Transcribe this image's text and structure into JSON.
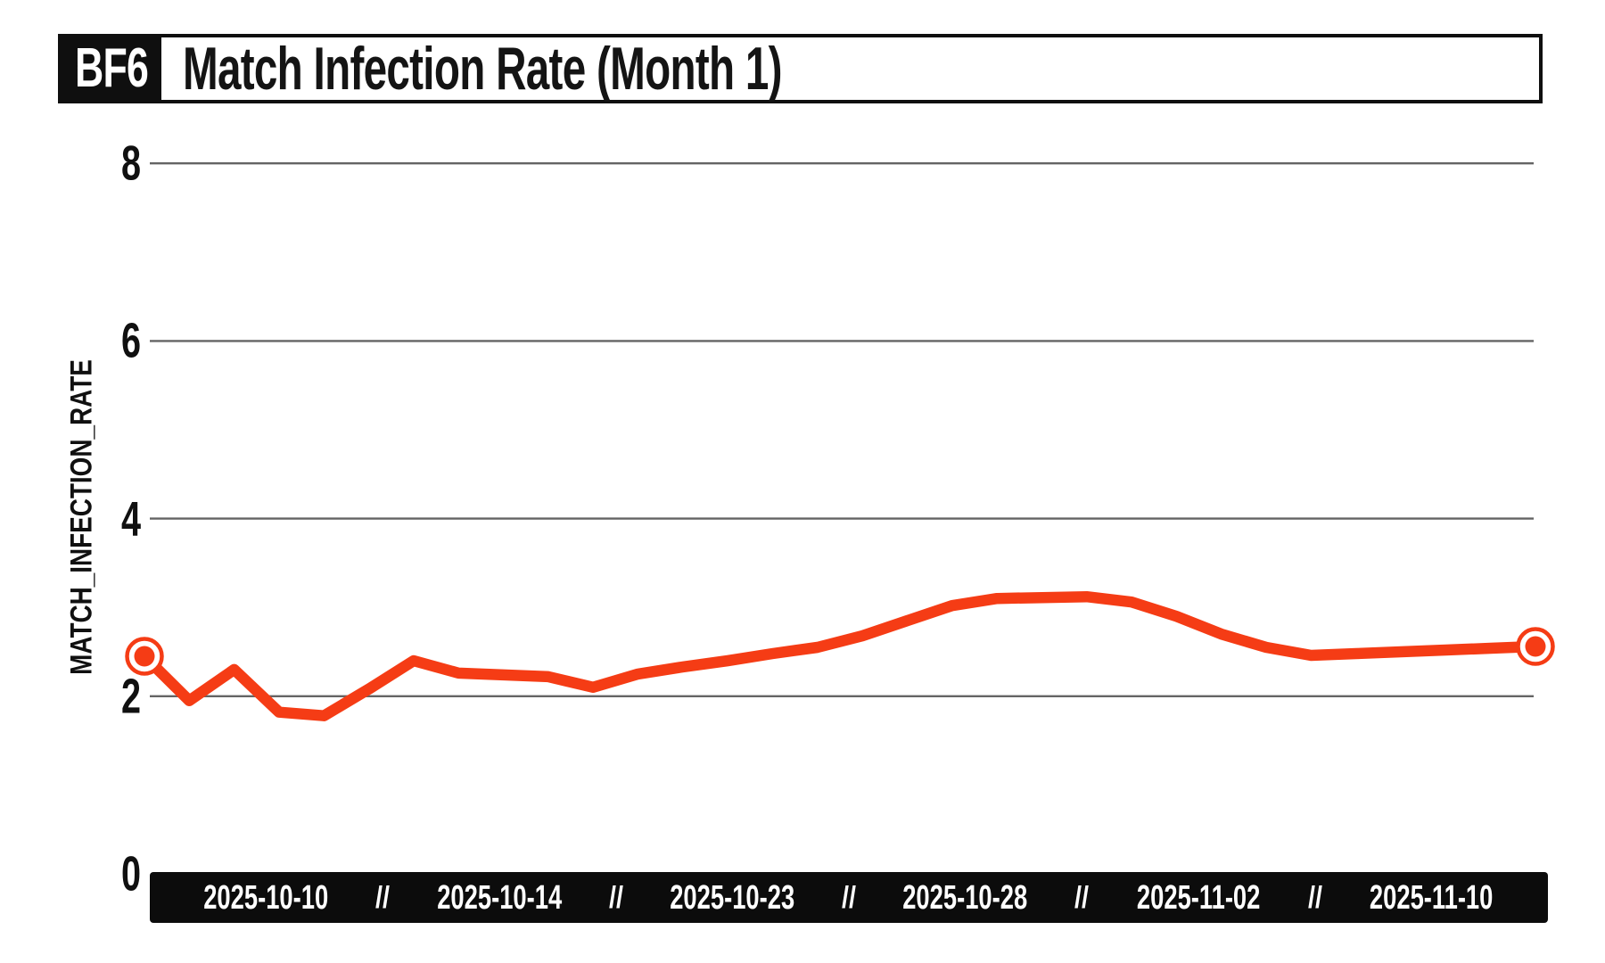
{
  "header": {
    "badge": "BF6",
    "title": "Match Infection Rate (Month 1)"
  },
  "colors": {
    "accent": "#f53c15",
    "ink": "#0f0f0f",
    "grid": "#646464",
    "bar_background": "#0c0c0c",
    "bar_text": "#ffffff",
    "background": "#ffffff"
  },
  "chart_data": {
    "type": "line",
    "title": "Match Infection Rate (Month 1)",
    "xlabel": "",
    "ylabel": "MATCH_INFECTION_RATE",
    "ylim": [
      0,
      8
    ],
    "yticks": [
      0,
      2,
      4,
      6,
      8
    ],
    "grid": "horizontal",
    "legend": "none",
    "xtick_labels": [
      "2025-10-10",
      "2025-10-14",
      "2025-10-23",
      "2025-10-28",
      "2025-11-02",
      "2025-11-10"
    ],
    "xtick_separator": "//",
    "series": [
      {
        "name": "MATCH_INFECTION_RATE",
        "color": "#f53c15",
        "marker": "endpoints-only",
        "x": [
          "2025-10-10",
          "2025-10-11",
          "2025-10-12",
          "2025-10-13",
          "2025-10-14",
          "2025-10-15",
          "2025-10-16",
          "2025-10-17",
          "2025-10-18",
          "2025-10-19",
          "2025-10-20",
          "2025-10-21",
          "2025-10-22",
          "2025-10-23",
          "2025-10-24",
          "2025-10-25",
          "2025-10-26",
          "2025-10-27",
          "2025-10-28",
          "2025-10-29",
          "2025-10-30",
          "2025-10-31",
          "2025-11-01",
          "2025-11-02",
          "2025-11-03",
          "2025-11-04",
          "2025-11-05",
          "2025-11-06",
          "2025-11-07",
          "2025-11-08",
          "2025-11-09",
          "2025-11-10"
        ],
        "values": [
          2.45,
          1.95,
          2.3,
          1.82,
          1.78,
          2.08,
          2.4,
          2.26,
          2.24,
          2.22,
          2.1,
          2.25,
          2.33,
          2.4,
          2.48,
          2.55,
          2.68,
          2.85,
          3.02,
          3.1,
          3.11,
          3.12,
          3.06,
          2.9,
          2.7,
          2.55,
          2.46,
          2.48,
          2.5,
          2.52,
          2.54,
          2.56
        ]
      }
    ]
  }
}
